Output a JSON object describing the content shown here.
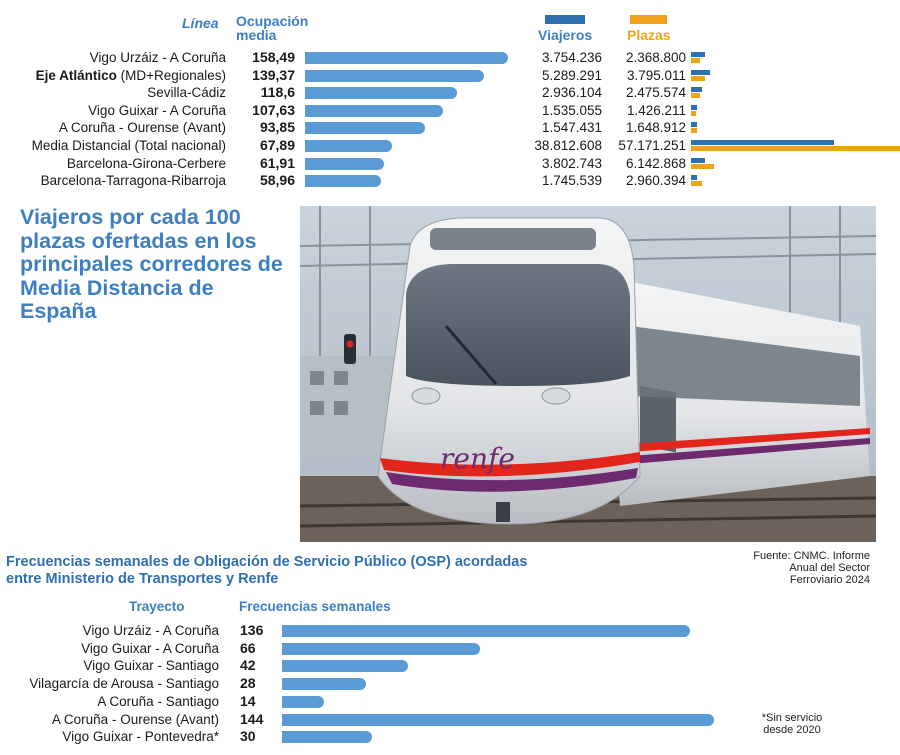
{
  "chart_data": [
    {
      "type": "bar",
      "title": "Viajeros por cada 100 plazas ofertadas en los principales corredores de Media Distancia de España",
      "column_headers": {
        "line": "Línea",
        "occupancy": "Ocupación media",
        "travelers": "Viajeros",
        "seats": "Plazas"
      },
      "rows": [
        {
          "line": "Vigo Urzáiz - A Coruña",
          "line_bold": "",
          "line_rest": "Vigo Urzáiz - A Coruña",
          "occupancy": 158.49,
          "occupancy_label": "158,49",
          "travelers": 3754236,
          "travelers_label": "3.754.236",
          "seats": 2368800,
          "seats_label": "2.368.800"
        },
        {
          "line": "Eje Atlántico (MD+Regionales)",
          "line_bold": "Eje Atlántico",
          "line_rest": " (MD+Regionales)",
          "occupancy": 139.37,
          "occupancy_label": "139,37",
          "travelers": 5289291,
          "travelers_label": "5.289.291",
          "seats": 3795011,
          "seats_label": "3.795.011"
        },
        {
          "line": "Sevilla-Cádiz",
          "line_bold": "",
          "line_rest": "Sevilla-Cádiz",
          "occupancy": 118.6,
          "occupancy_label": "118,6",
          "travelers": 2936104,
          "travelers_label": "2.936.104",
          "seats": 2475574,
          "seats_label": "2.475.574"
        },
        {
          "line": "Vigo Guixar - A Coruña",
          "line_bold": "",
          "line_rest": "Vigo Guixar - A Coruña",
          "occupancy": 107.63,
          "occupancy_label": "107,63",
          "travelers": 1535055,
          "travelers_label": "1.535.055",
          "seats": 1426211,
          "seats_label": "1.426.211"
        },
        {
          "line": "A Coruña - Ourense (Avant)",
          "line_bold": "",
          "line_rest": "A Coruña - Ourense (Avant)",
          "occupancy": 93.85,
          "occupancy_label": "93,85",
          "travelers": 1547431,
          "travelers_label": "1.547.431",
          "seats": 1648912,
          "seats_label": "1.648.912"
        },
        {
          "line": "Media Distancial (Total nacional)",
          "line_bold": "",
          "line_rest": "Media Distancial (Total nacional)",
          "occupancy": 67.89,
          "occupancy_label": "67,89",
          "travelers": 38812608,
          "travelers_label": "38.812.608",
          "seats": 57171251,
          "seats_label": "57.171.251"
        },
        {
          "line": "Barcelona-Girona-Cerbere",
          "line_bold": "",
          "line_rest": "Barcelona-Girona-Cerbere",
          "occupancy": 61.91,
          "occupancy_label": "61,91",
          "travelers": 3802743,
          "travelers_label": "3.802.743",
          "seats": 6142868,
          "seats_label": "6.142.868"
        },
        {
          "line": "Barcelona-Tarragona-Ribarroja",
          "line_bold": "",
          "line_rest": "Barcelona-Tarragona-Ribarroja",
          "occupancy": 58.96,
          "occupancy_label": "58,96",
          "travelers": 1745539,
          "travelers_label": "1.745.539",
          "seats": 2960394,
          "seats_label": "2.960.394"
        }
      ],
      "colors": {
        "occupancy_bar": "#5b9bd5",
        "travelers": "#2e6fb0",
        "seats": "#f0a21c",
        "title": "#3d7fc1"
      }
    },
    {
      "type": "bar",
      "title": "Frecuencias semanales de Obligación de Servicio Público (OSP) acordadas entre Ministerio de Transportes y Renfe",
      "column_headers": {
        "route": "Trayecto",
        "frequency": "Frecuencias semanales"
      },
      "rows": [
        {
          "route": "Vigo Urzáiz - A Coruña",
          "value": 136
        },
        {
          "route": "Vigo Guixar - A Coruña",
          "value": 66
        },
        {
          "route": "Vigo Guixar - Santiago",
          "value": 42
        },
        {
          "route": "Vilagarcía de Arousa - Santiago",
          "value": 28
        },
        {
          "route": "A Coruña - Santiago",
          "value": 14
        },
        {
          "route": "A Coruña - Ourense (Avant)",
          "value": 144
        },
        {
          "route": "Vigo Guixar - Pontevedra*",
          "value": 30
        }
      ],
      "colors": {
        "bar": "#5b9bd5",
        "title": "#2e6fb0"
      }
    }
  ],
  "photo": {
    "logo_text": "renfe"
  },
  "source": "Fuente: CNMC. Informe Anual del Sector Ferroviario 2024",
  "note": "*Sin servicio desde 2020"
}
